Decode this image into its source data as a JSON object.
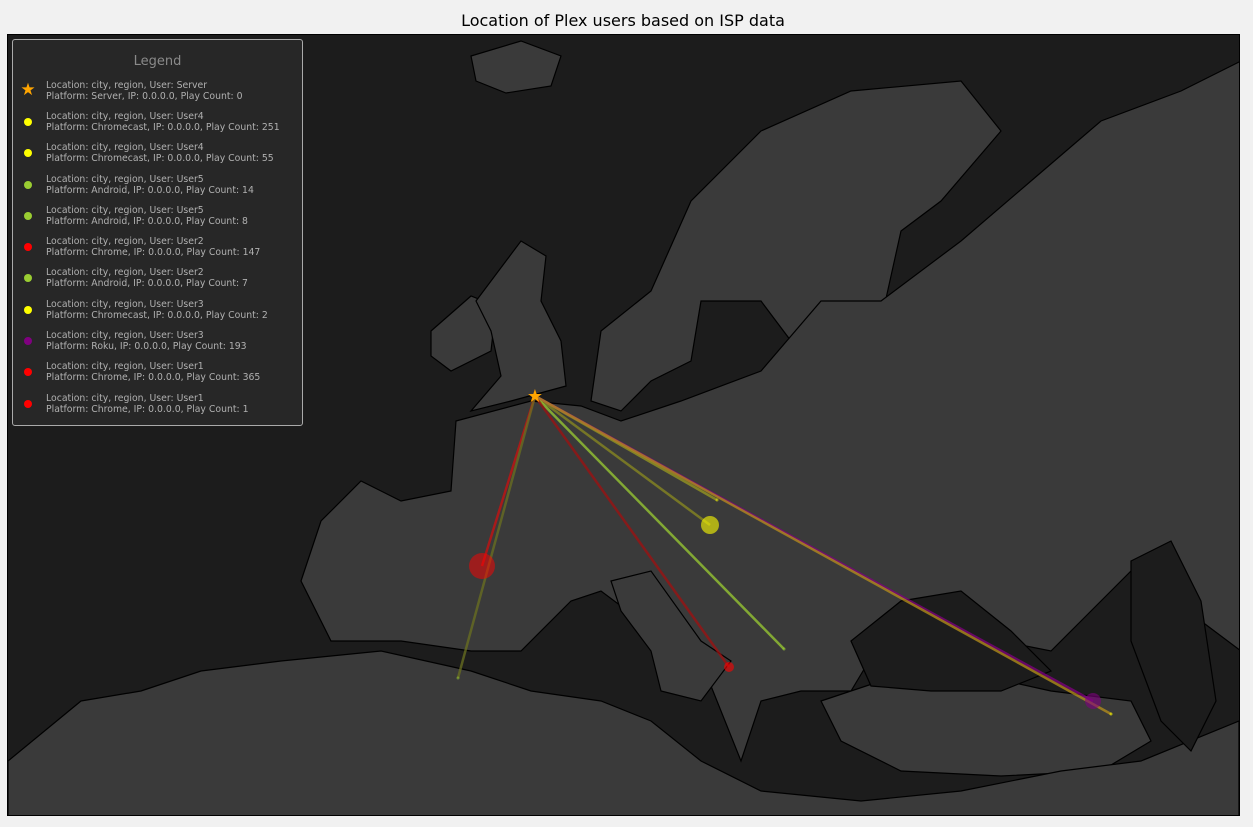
{
  "title": "Location of Plex users based on ISP data",
  "colors": {
    "ocean": "#1c1c1c",
    "land": "#3a3a3a",
    "server": "#ffa500",
    "chromecast": "#ffff00",
    "android": "#9acd32",
    "chrome": "#ff0000",
    "roku": "#800080"
  },
  "legend": {
    "title": "Legend",
    "items": [
      {
        "marker": "star",
        "color": "#ffa500",
        "line1": "Location: city, region,  User: Server",
        "line2": "Platform: Server, IP: 0.0.0.0, Play Count: 0"
      },
      {
        "marker": "dot",
        "color": "#ffff00",
        "line1": "Location: city, region,  User: User4",
        "line2": "Platform: Chromecast, IP: 0.0.0.0, Play Count: 251"
      },
      {
        "marker": "dot",
        "color": "#ffff00",
        "line1": "Location: city, region,  User: User4",
        "line2": "Platform: Chromecast, IP: 0.0.0.0, Play Count: 55"
      },
      {
        "marker": "dot",
        "color": "#9acd32",
        "line1": "Location: city, region,  User: User5",
        "line2": "Platform: Android, IP: 0.0.0.0, Play Count: 14"
      },
      {
        "marker": "dot",
        "color": "#9acd32",
        "line1": "Location: city, region,  User: User5",
        "line2": "Platform: Android, IP: 0.0.0.0, Play Count: 8"
      },
      {
        "marker": "dot",
        "color": "#ff0000",
        "line1": "Location: city, region,  User: User2",
        "line2": "Platform: Chrome, IP: 0.0.0.0, Play Count: 147"
      },
      {
        "marker": "dot",
        "color": "#9acd32",
        "line1": "Location: city, region,  User: User2",
        "line2": "Platform: Android, IP: 0.0.0.0, Play Count: 7"
      },
      {
        "marker": "dot",
        "color": "#ffff00",
        "line1": "Location: city, region,  User: User3",
        "line2": "Platform: Chromecast, IP: 0.0.0.0, Play Count: 2"
      },
      {
        "marker": "dot",
        "color": "#800080",
        "line1": "Location: city, region,  User: User3",
        "line2": "Platform: Roku, IP: 0.0.0.0, Play Count: 193"
      },
      {
        "marker": "dot",
        "color": "#ff0000",
        "line1": "Location: city, region,  User: User1",
        "line2": "Platform: Chrome, IP: 0.0.0.0, Play Count: 365"
      },
      {
        "marker": "dot",
        "color": "#ff0000",
        "line1": "Location: city, region,  User: User1",
        "line2": "Platform: Chrome, IP: 0.0.0.0, Play Count: 1"
      }
    ]
  }
}
